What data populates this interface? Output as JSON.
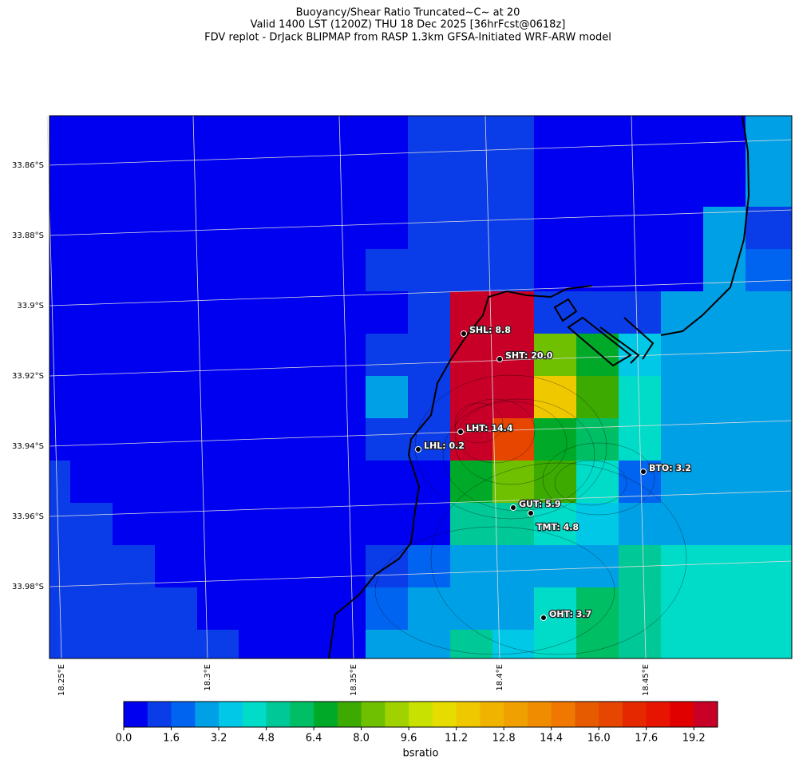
{
  "title_lines": [
    "Buoyancy/Shear Ratio Truncated~C~    at 20",
    "Valid 1400 LST (1200Z) THU 18 Dec 2025 [36hrFcst@0618z]",
    "FDV replot - DrJack BLIPMAP from RASP 1.3km GFSA-Initiated WRF-ARW model"
  ],
  "map": {
    "lat_labels": [
      "33.86°S",
      "33.88°S",
      "33.9°S",
      "33.92°S",
      "33.94°S",
      "33.96°S",
      "33.98°S"
    ],
    "lon_labels": [
      "18.25°E",
      "18.3°E",
      "18.35°E",
      "18.4°E",
      "18.45°E"
    ],
    "stations": [
      "SHL: 8.8",
      "SHT: 20.0",
      "LHT: 14.4",
      "LHL: 0.2",
      "BTO: 3.2",
      "GUT: 5.9",
      "TMT: 4.8",
      "OHT: 3.7"
    ]
  },
  "colorbar": {
    "lim": [
      0,
      20
    ],
    "colors": [
      "#0000f0",
      "#0a3ce8",
      "#0064f0",
      "#00a0e6",
      "#00c8e6",
      "#00dcc8",
      "#00c896",
      "#00be64",
      "#00aa28",
      "#3caa00",
      "#6ec000",
      "#a0d200",
      "#c8e100",
      "#e6dc00",
      "#f0c800",
      "#f0b400",
      "#f0a000",
      "#f08c00",
      "#f07800",
      "#e65a00",
      "#e64600",
      "#e62800",
      "#e61400",
      "#e10000",
      "#c80028"
    ],
    "ticks": [
      {
        "value": 0,
        "label": "0.0"
      },
      1.6,
      3.2,
      4.8,
      6.4,
      {
        "value": 8,
        "label": "8.0"
      },
      9.6,
      11.2,
      12.8,
      14.4,
      {
        "value": 16,
        "label": "16.0"
      },
      17.6,
      19.2
    ],
    "label": "bsratio"
  }
}
